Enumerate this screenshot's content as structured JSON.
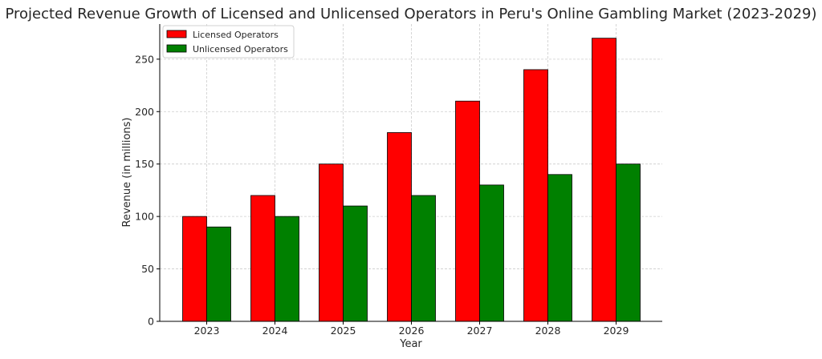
{
  "chart_data": {
    "type": "bar",
    "title": "Projected Revenue Growth of Licensed and Unlicensed Operators in Peru's Online Gambling Market (2023-2029)",
    "xlabel": "Year",
    "ylabel": "Revenue (in millions)",
    "categories": [
      "2023",
      "2024",
      "2025",
      "2026",
      "2027",
      "2028",
      "2029"
    ],
    "series": [
      {
        "name": "Licensed Operators",
        "color": "#ff0000",
        "values": [
          100,
          120,
          150,
          180,
          210,
          240,
          270
        ]
      },
      {
        "name": "Unlicensed Operators",
        "color": "#008000",
        "values": [
          90,
          100,
          110,
          120,
          130,
          140,
          150
        ]
      }
    ],
    "yticks": [
      0,
      50,
      100,
      150,
      200,
      250
    ],
    "ylim": [
      0,
      283.5
    ],
    "grid": true,
    "legend_position": "top-left"
  }
}
